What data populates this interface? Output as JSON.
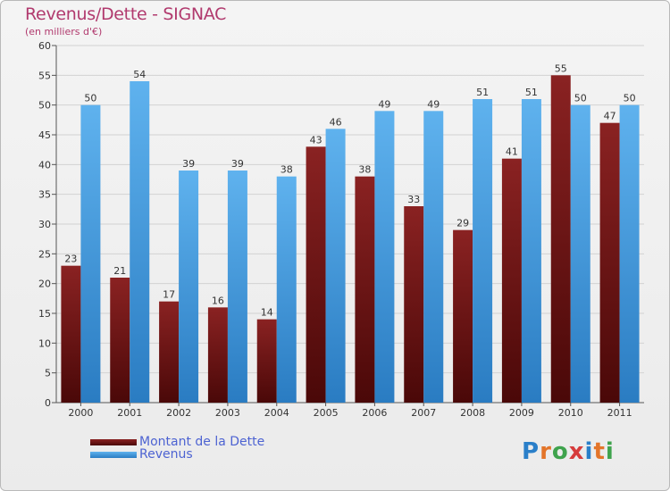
{
  "header": {
    "title": "Revenus/Dette - SIGNAC",
    "subtitle": "(en milliers d'€)"
  },
  "colors": {
    "dette": "#7a1414",
    "revenus": "#4ea6e6",
    "title": "#b13a6e",
    "legend_text": "#4d63d2"
  },
  "chart_data": {
    "type": "bar",
    "title": "Revenus/Dette - SIGNAC",
    "subtitle": "(en milliers d'€)",
    "categories": [
      "2000",
      "2001",
      "2002",
      "2003",
      "2004",
      "2005",
      "2006",
      "2007",
      "2008",
      "2009",
      "2010",
      "2011"
    ],
    "series": [
      {
        "name": "Montant de la Dette",
        "values": [
          23,
          21,
          17,
          16,
          14,
          43,
          38,
          33,
          29,
          41,
          55,
          47
        ]
      },
      {
        "name": "Revenus",
        "values": [
          50,
          54,
          39,
          39,
          38,
          46,
          49,
          49,
          51,
          51,
          50,
          50
        ]
      }
    ],
    "ylim": [
      0,
      60
    ],
    "yticks": [
      "0",
      "5",
      "10",
      "15",
      "20",
      "25",
      "30",
      "35",
      "40",
      "45",
      "50",
      "55",
      "60"
    ],
    "grid": true,
    "legend_position": "bottom-left"
  },
  "legend": {
    "items": [
      {
        "label": "Montant de la Dette"
      },
      {
        "label": "Revenus"
      }
    ]
  },
  "logo": {
    "text": "Proxiti",
    "letter_colors": [
      "#2a7fc9",
      "#e3752a",
      "#3fa34d",
      "#d63c3c",
      "#2a7fc9",
      "#e3752a",
      "#3fa34d"
    ]
  }
}
